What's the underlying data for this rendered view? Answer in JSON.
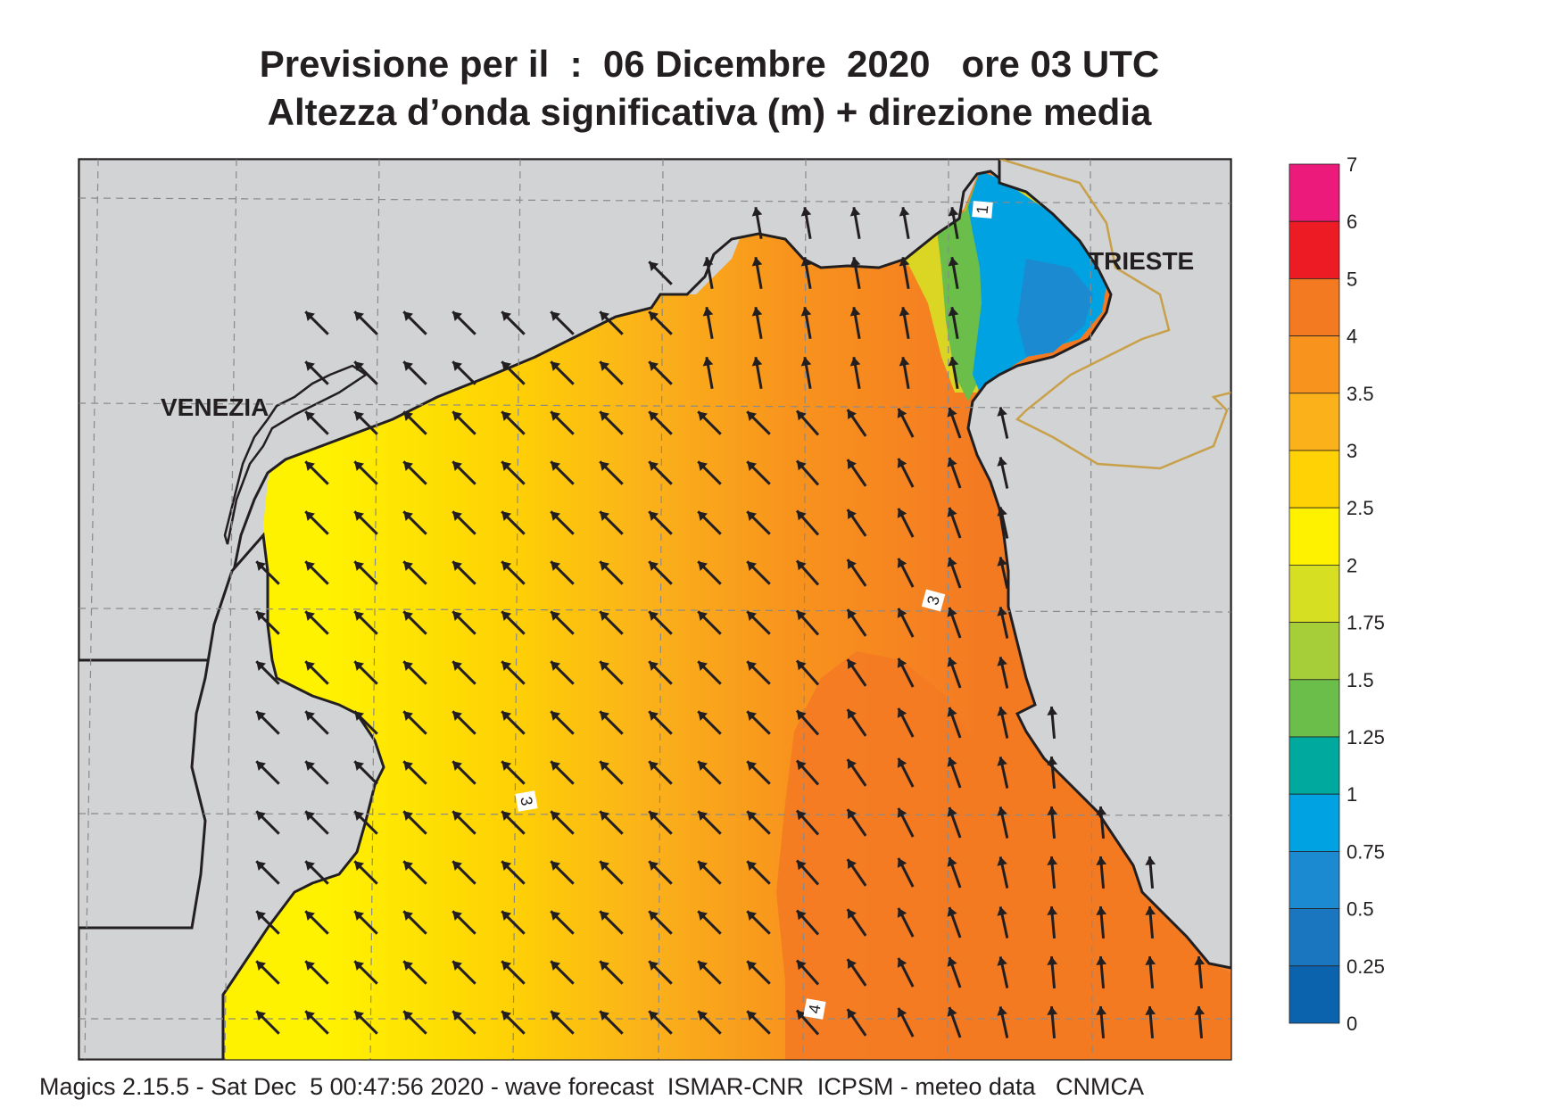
{
  "title": {
    "line1": "Previsione per il  :  06 Dicembre  2020   ore 03 UTC",
    "line2": "Altezza d’onda significativa (m) + direzione media"
  },
  "map": {
    "places": [
      "VENEZIA",
      "TRIESTE"
    ],
    "contour_labels": [
      "1",
      "3",
      "3",
      "4"
    ],
    "wave_direction": "towards north-west (arrows point NW over most of the basin, N near the Gulf of Trieste)",
    "land_color": "#d1d3d4",
    "coast_color": "#231f20",
    "border_color": "#c8a04a"
  },
  "legend": {
    "labels": [
      "7",
      "6",
      "5",
      "4",
      "3.5",
      "3",
      "2.5",
      "2",
      "1.75",
      "1.5",
      "1.25",
      "1",
      "0.75",
      "0.5",
      "0.25",
      "0"
    ],
    "colors": [
      "#ec1a7b",
      "#ed1c24",
      "#f47a22",
      "#f8941d",
      "#fbb21a",
      "#fed204",
      "#fff200",
      "#d7df23",
      "#a6ce39",
      "#6bbe4a",
      "#00a99d",
      "#00a2e2",
      "#1c8ad0",
      "#1976bf",
      "#0b63ae"
    ]
  },
  "footer": "Magics 2.15.5 - Sat Dec  5 00:47:56 2020 - wave forecast  ISMAR-CNR  ICPSM - meteo data   CNMCA"
}
